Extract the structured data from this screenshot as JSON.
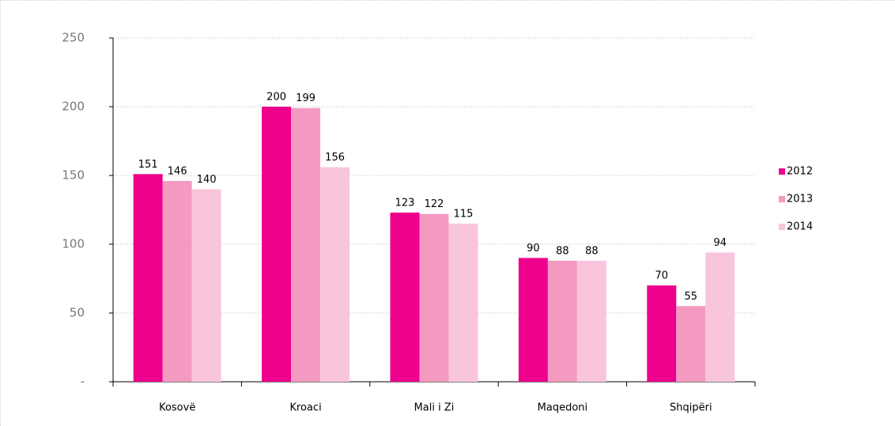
{
  "chart_data": {
    "type": "bar",
    "categories": [
      "Kosovë",
      "Kroaci",
      "Mali i Zi",
      "Maqedoni",
      "Shqipëri"
    ],
    "series": [
      {
        "name": "2012",
        "color": "#ec008c",
        "values": [
          151,
          200,
          123,
          90,
          70
        ]
      },
      {
        "name": "2013",
        "color": "#f49ac1",
        "values": [
          146,
          199,
          122,
          88,
          55
        ]
      },
      {
        "name": "2014",
        "color": "#f9c5dc",
        "values": [
          140,
          156,
          115,
          88,
          94
        ]
      }
    ],
    "ylim": [
      0,
      250
    ],
    "yticks": [
      {
        "value": 0,
        "label": "-"
      },
      50,
      100,
      150,
      200,
      250
    ],
    "grid": true,
    "legend": "right"
  }
}
